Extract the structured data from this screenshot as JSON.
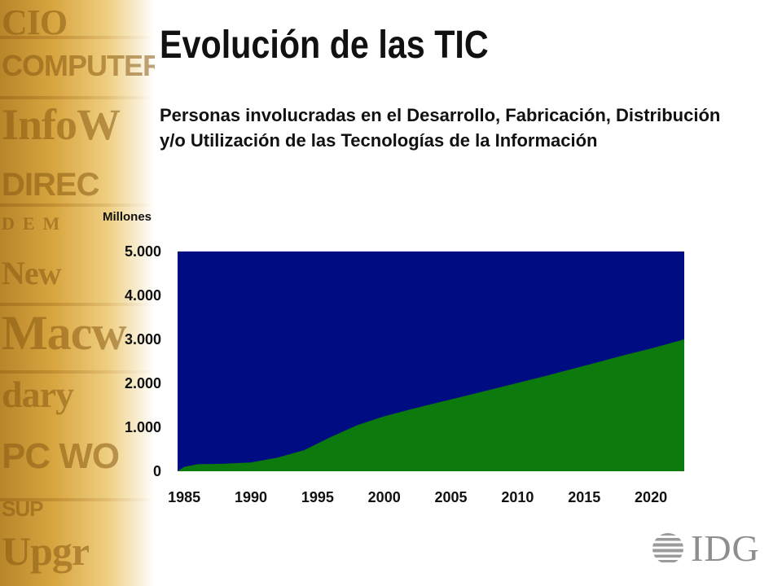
{
  "slide": {
    "title": "Evolución de las TIC",
    "subtitle": "Personas involucradas en el Desarrollo, Fabricación, Distribución y/o Utilización de las Tecnologías de la Información"
  },
  "logo": {
    "text": "IDG",
    "icon": "idg-globe-icon"
  },
  "colors": {
    "plot_background": "#000c82",
    "area_fill": "#0c7a0c",
    "text": "#111111"
  },
  "chart_data": {
    "type": "area",
    "title": "",
    "ylabel": "Millones",
    "xlabel": "",
    "ylim": [
      0,
      5000
    ],
    "xlim": [
      1984.5,
      2022.5
    ],
    "y_ticks": [
      "5.000",
      "4.000",
      "3.000",
      "2.000",
      "1.000",
      "0"
    ],
    "y_tick_values": [
      5000,
      4000,
      3000,
      2000,
      1000,
      0
    ],
    "x_ticks": [
      "1985",
      "1990",
      "1995",
      "2000",
      "2005",
      "2010",
      "2015",
      "2020"
    ],
    "x_tick_values": [
      1985,
      1990,
      1995,
      2000,
      2005,
      2010,
      2015,
      2020
    ],
    "grid": false,
    "legend": "none",
    "series": [
      {
        "x": [
          1984.5,
          1985,
          1986,
          1988,
          1990,
          1992,
          1994,
          1996,
          1998,
          2000,
          2002,
          2004,
          2006,
          2008,
          2010,
          2012,
          2014,
          2016,
          2018,
          2020,
          2022.5
        ],
        "values": [
          0,
          100,
          160,
          170,
          200,
          310,
          480,
          780,
          1050,
          1250,
          1410,
          1560,
          1710,
          1860,
          2010,
          2160,
          2320,
          2480,
          2640,
          2790,
          3000
        ]
      }
    ]
  }
}
